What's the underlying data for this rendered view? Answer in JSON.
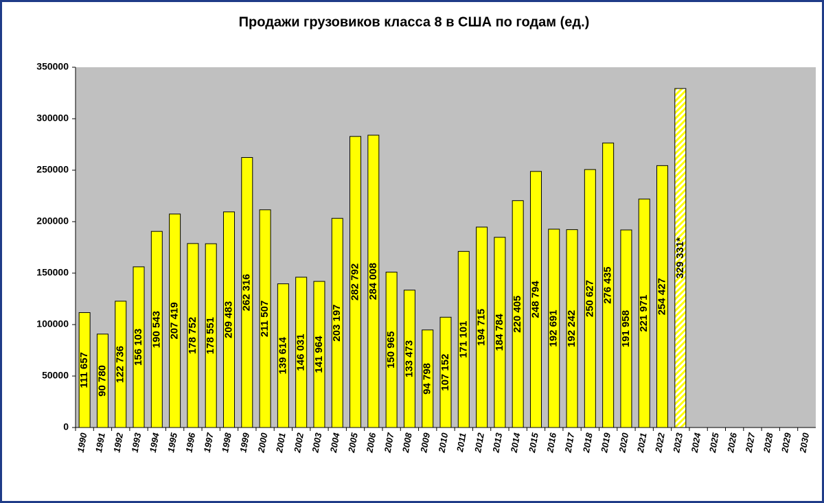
{
  "chart_data": {
    "type": "bar",
    "title": "Продажи грузовиков класса 8 в США по годам (ед.)",
    "categories": [
      "1990",
      "1991",
      "1992",
      "1993",
      "1994",
      "1995",
      "1996",
      "1997",
      "1998",
      "1999",
      "2000",
      "2001",
      "2002",
      "2003",
      "2004",
      "2005",
      "2006",
      "2007",
      "2008",
      "2009",
      "2010",
      "2011",
      "2012",
      "2013",
      "2014",
      "2015",
      "2016",
      "2017",
      "2018",
      "2019",
      "2020",
      "2021",
      "2022",
      "2023",
      "2024",
      "2025",
      "2026",
      "2027",
      "2028",
      "2029",
      "2030"
    ],
    "values": [
      111657,
      90780,
      122736,
      156103,
      190543,
      207419,
      178752,
      178551,
      209483,
      262316,
      211507,
      139614,
      146031,
      141964,
      203197,
      282792,
      284008,
      150965,
      133473,
      94798,
      107152,
      171101,
      194715,
      184784,
      220405,
      248794,
      192691,
      192242,
      250627,
      276435,
      191958,
      221971,
      254427,
      329331,
      null,
      null,
      null,
      null,
      null,
      null,
      null
    ],
    "value_labels": [
      "111 657",
      "90 780",
      "122 736",
      "156 103",
      "190 543",
      "207 419",
      "178 752",
      "178 551",
      "209 483",
      "262 316",
      "211 507",
      "139 614",
      "146 031",
      "141 964",
      "203 197",
      "282 792",
      "284 008",
      "150 965",
      "133 473",
      "94 798",
      "107 152",
      "171 101",
      "194 715",
      "184 784",
      "220 405",
      "248 794",
      "192 691",
      "192 242",
      "250 627",
      "276 435",
      "191 958",
      "221 971",
      "254 427",
      "329 331*",
      null,
      null,
      null,
      null,
      null,
      null,
      null
    ],
    "color": "#ffff00",
    "hatched_index": 33,
    "plot_background": "#c0c0c0",
    "ylim": [
      0,
      350000
    ],
    "yticks": [
      0,
      50000,
      100000,
      150000,
      200000,
      250000,
      300000,
      350000
    ],
    "grid": false
  }
}
